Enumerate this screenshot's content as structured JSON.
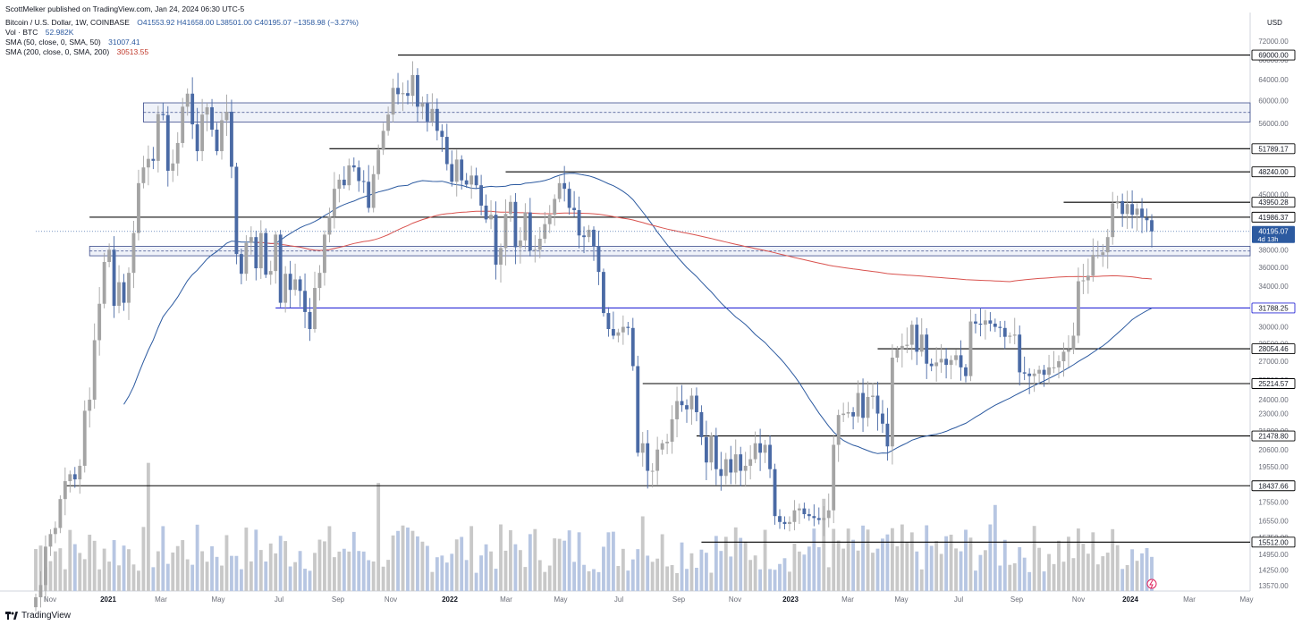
{
  "publisher": "ScottMelker published on TradingView.com, Jan 24, 2024 06:30 UTC-5",
  "symbol_line": {
    "name": "Bitcoin / U.S. Dollar, 1W, COINBASE",
    "open": "O41553.92",
    "high": "H41658.00",
    "low": "L38501.00",
    "close": "C40195.07",
    "change": "−1358.98 (−3.27%)"
  },
  "volume_line": {
    "label": "Vol · BTC",
    "value": "52.982K"
  },
  "sma50_line": {
    "label": "SMA (50, close, 0, SMA, 50)",
    "value": "31007.41"
  },
  "sma200_line": {
    "label": "SMA (200, close, 0, SMA, 200)",
    "value": "30513.55"
  },
  "currency": "USD",
  "footer_brand": "TradingView",
  "colors": {
    "up": "#a4a4a4",
    "down": "#4a6aa5",
    "sma50": "#2c5aa0",
    "sma200": "#d9534f",
    "level": "#000000",
    "level_blue": "#2b2bd6",
    "zone_fill": "#e8ecf7",
    "zone_border": "#3c4c8c"
  },
  "chart_data": {
    "type": "candlestick",
    "axis_scale": "log",
    "ylim": [
      13000,
      75000
    ],
    "y_ticks": [
      72000,
      68000,
      64000,
      60000,
      56000,
      52000,
      48000,
      45000,
      42000,
      40000,
      38000,
      36000,
      34000,
      32000,
      30000,
      28500,
      27000,
      25500,
      24000,
      23000,
      21800,
      20600,
      19550,
      18550,
      17550,
      16550,
      15750,
      14950,
      14250,
      13570
    ],
    "x_tick_labels": [
      {
        "label": "Nov",
        "bold": false
      },
      {
        "label": "2021",
        "bold": true
      },
      {
        "label": "Mar",
        "bold": false
      },
      {
        "label": "May",
        "bold": false
      },
      {
        "label": "Jul",
        "bold": false
      },
      {
        "label": "Sep",
        "bold": false
      },
      {
        "label": "Nov",
        "bold": false
      },
      {
        "label": "2022",
        "bold": true
      },
      {
        "label": "Mar",
        "bold": false
      },
      {
        "label": "May",
        "bold": false
      },
      {
        "label": "Jul",
        "bold": false
      },
      {
        "label": "Sep",
        "bold": false
      },
      {
        "label": "Nov",
        "bold": false
      },
      {
        "label": "2023",
        "bold": true
      },
      {
        "label": "Mar",
        "bold": false
      },
      {
        "label": "May",
        "bold": false
      },
      {
        "label": "Jul",
        "bold": false
      },
      {
        "label": "Sep",
        "bold": false
      },
      {
        "label": "Nov",
        "bold": false
      },
      {
        "label": "2024",
        "bold": true
      },
      {
        "label": "Mar",
        "bold": false
      },
      {
        "label": "May",
        "bold": false
      }
    ],
    "weekly_closes": [
      13100,
      13600,
      15300,
      15900,
      16200,
      17700,
      18700,
      19100,
      18800,
      19600,
      23200,
      24000,
      28800,
      32200,
      36600,
      38000,
      32000,
      34400,
      32300,
      35400,
      40000,
      46600,
      48900,
      50200,
      49900,
      57600,
      57400,
      48400,
      49500,
      52700,
      58900,
      61300,
      55800,
      51400,
      57500,
      58800,
      54900,
      51400,
      56500,
      58000,
      49000,
      37500,
      35300,
      38800,
      39500,
      35900,
      40000,
      35200,
      35600,
      39800,
      32300,
      35300,
      33600,
      34700,
      33500,
      31400,
      29800,
      33800,
      35400,
      39800,
      42100,
      45800,
      47100,
      46300,
      49200,
      48900,
      46900,
      46800,
      43200,
      47900,
      51600,
      54700,
      57500,
      62400,
      61200,
      61400,
      60900,
      64900,
      58900,
      59500,
      56300,
      58500,
      54700,
      53700,
      49400,
      46800,
      50100,
      47000,
      46400,
      47700,
      46300,
      43500,
      41700,
      42300,
      36300,
      38200,
      42400,
      44000,
      38300,
      39100,
      42600,
      37900,
      38000,
      39300,
      41100,
      42300,
      44400,
      46600,
      45800,
      43200,
      42900,
      39700,
      39500,
      40400,
      38400,
      35500,
      31300,
      29800,
      29200,
      29500,
      30000,
      29900,
      26600,
      20400,
      21000,
      19300,
      19300,
      20600,
      21000,
      21100,
      22600,
      23900,
      23600,
      23300,
      24300,
      23100,
      21400,
      19800,
      21500,
      19400,
      19000,
      20000,
      19200,
      20300,
      19300,
      19600,
      20000,
      21000,
      20400,
      20900,
      19400,
      16800,
      16500,
      16400,
      16500,
      17100,
      17200,
      16900,
      16800,
      16700,
      16600,
      16700,
      17100,
      20900,
      22900,
      23000,
      23100,
      22800,
      24500,
      22700,
      24200,
      24300,
      23000,
      22300,
      20800,
      27300,
      28000,
      28300,
      28400,
      30200,
      27800,
      29300,
      26800,
      26600,
      26900,
      27200,
      26700,
      27100,
      27500,
      26500,
      25800,
      30500,
      30300,
      30200,
      30600,
      30300,
      30000,
      29900,
      29100,
      29200,
      29300,
      26100,
      26000,
      25800,
      26000,
      26300,
      25900,
      26500,
      26500,
      27000,
      27800,
      28000,
      29200,
      34500,
      34600,
      35100,
      37400,
      37400,
      37700,
      39500,
      43800,
      44100,
      42400,
      43700,
      42300,
      43100,
      41900,
      41600,
      40195
    ]
  },
  "price_levels": [
    {
      "value": "69000.00",
      "color": "black"
    },
    {
      "value": "51789.17",
      "color": "black"
    },
    {
      "value": "48240.00",
      "color": "black"
    },
    {
      "value": "43950.28",
      "color": "black"
    },
    {
      "value": "41986.37",
      "color": "black"
    },
    {
      "value": "31788.25",
      "color": "blue"
    },
    {
      "value": "28054.46",
      "color": "black"
    },
    {
      "value": "25214.57",
      "color": "black"
    },
    {
      "value": "21478.80",
      "color": "black"
    },
    {
      "value": "18437.66",
      "color": "black"
    },
    {
      "value": "15512.00",
      "color": "black"
    }
  ],
  "current_price": {
    "value": "40195.07",
    "countdown": "4d 13h"
  }
}
